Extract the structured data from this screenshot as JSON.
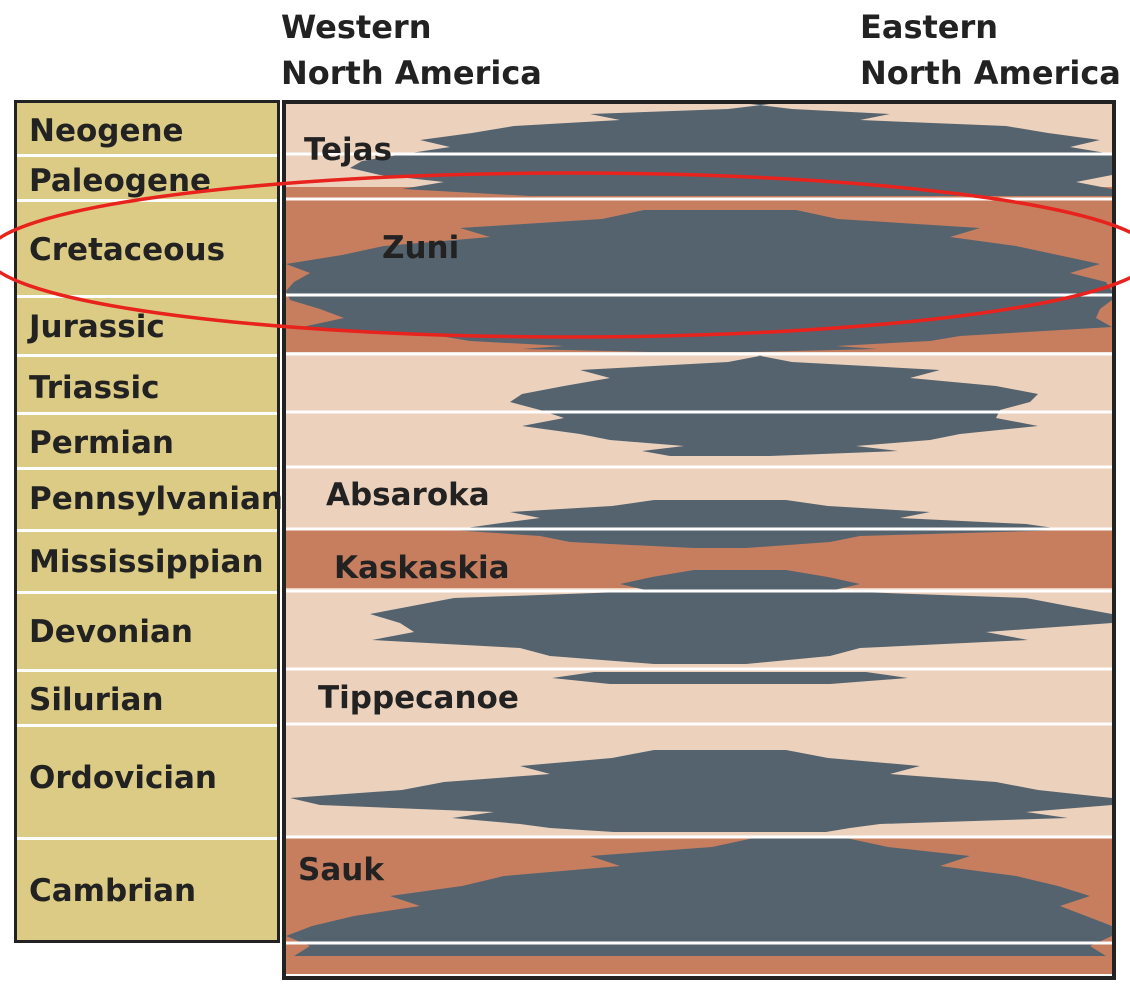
{
  "header": {
    "western_line1": "Western",
    "western_line2": "North America",
    "eastern_line1": "Eastern",
    "eastern_line2": "North America"
  },
  "periods": [
    {
      "name": "Neogene"
    },
    {
      "name": "Paleogene"
    },
    {
      "name": "Cretaceous"
    },
    {
      "name": "Jurassic"
    },
    {
      "name": "Triassic"
    },
    {
      "name": "Permian"
    },
    {
      "name": "Pennsylvanian"
    },
    {
      "name": "Mississippian"
    },
    {
      "name": "Devonian"
    },
    {
      "name": "Silurian"
    },
    {
      "name": "Ordovician"
    },
    {
      "name": "Cambrian"
    }
  ],
  "sequences": [
    {
      "name": "Tejas",
      "highlighted": false
    },
    {
      "name": "Zuni",
      "highlighted": true
    },
    {
      "name": "Absaroka",
      "highlighted": false
    },
    {
      "name": "Kaskaskia",
      "highlighted": true
    },
    {
      "name": "Tippecanoe",
      "highlighted": false
    },
    {
      "name": "Sauk",
      "highlighted": true
    }
  ],
  "colors": {
    "period_column": "#dccb85",
    "sequence_light": "#ecd2bd",
    "sequence_highlight": "#c77e5f",
    "unconformity": "#55636f",
    "annotation_ellipse": "#e8231d",
    "outline": "#222222"
  },
  "annotation": {
    "shape": "ellipse",
    "encircles": "Cretaceous"
  }
}
